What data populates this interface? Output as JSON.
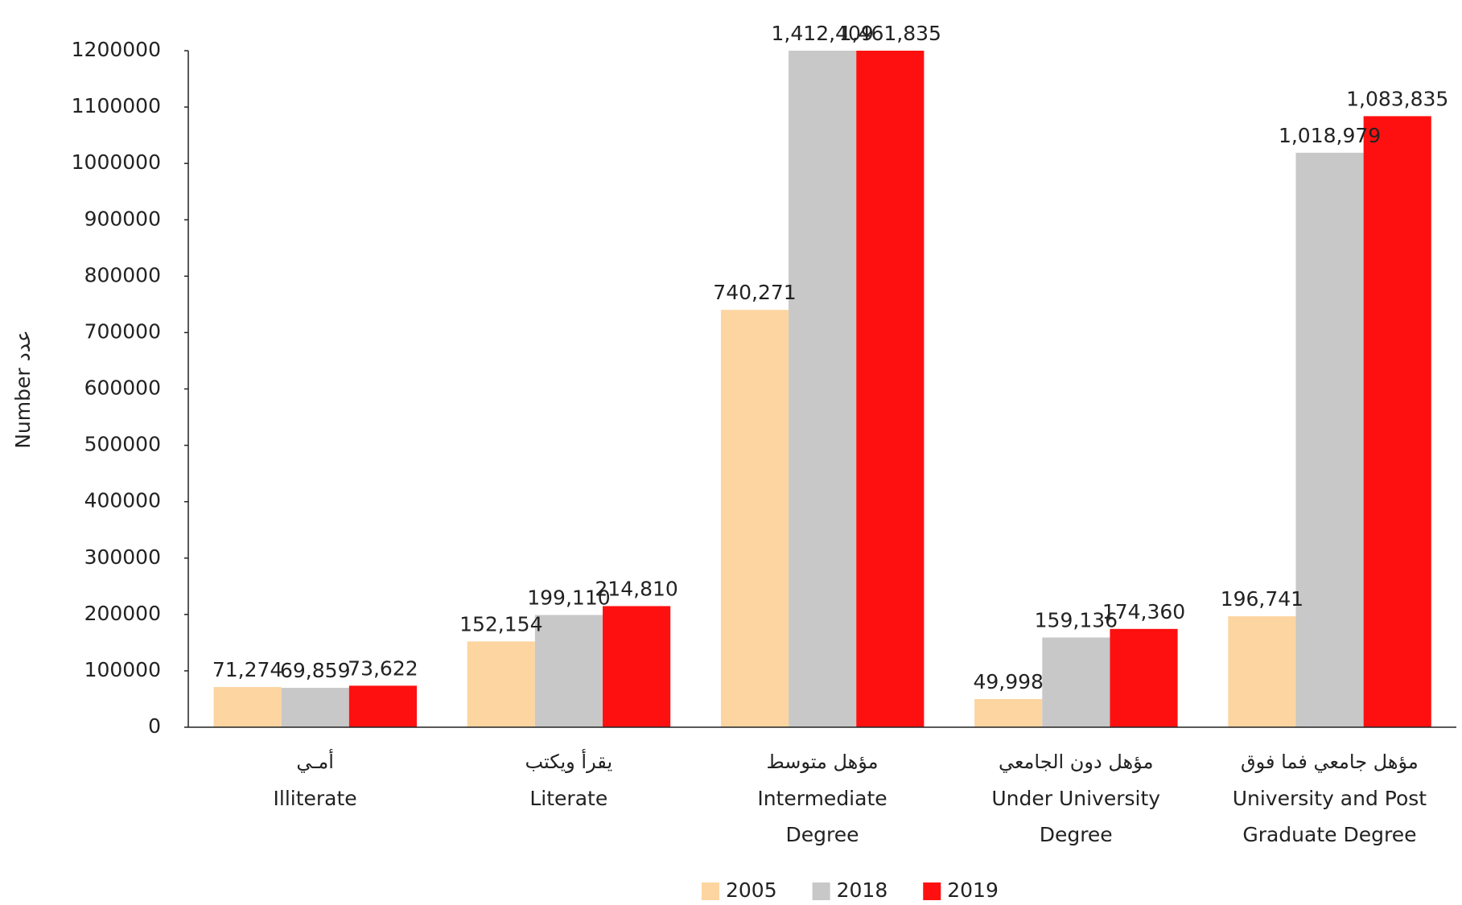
{
  "chart_data": {
    "type": "bar",
    "y_label": "Number  عدد",
    "categories": [
      "Illiterate",
      "Literate",
      "Intermediate Degree",
      "Under University Degree",
      "University and Post Graduate Degree"
    ],
    "categories_ar": [
      "أمـي",
      "يقرأ ويكتب",
      "مؤهل متوسط",
      "مؤهل دون الجامعي",
      "مؤهل جامعي فما فوق"
    ],
    "series": [
      {
        "name": "2005",
        "color": "#fdd5a0",
        "values": [
          71274,
          152154,
          740271,
          49998,
          196741
        ],
        "value_labels": [
          "71,274",
          "152,154",
          "740,271",
          "49,998",
          "196,741"
        ]
      },
      {
        "name": "2018",
        "color": "#c8c8c8",
        "values": [
          69859,
          199110,
          1412409,
          159136,
          1018979
        ],
        "value_labels": [
          "69,859",
          "199,110",
          "1,412,409",
          "159,136",
          "1,018,979"
        ]
      },
      {
        "name": "2019",
        "color": "#ff1010",
        "values": [
          73622,
          214810,
          1461835,
          174360,
          1083835
        ],
        "value_labels": [
          "73,622",
          "214,810",
          "1,461,835",
          "174,360",
          "1,083,835"
        ]
      }
    ],
    "ylim": [
      0,
      1200000
    ],
    "yticks": [
      0,
      100000,
      200000,
      300000,
      400000,
      500000,
      600000,
      700000,
      800000,
      900000,
      1000000,
      1100000,
      1200000
    ],
    "grid": false,
    "legend": "bottom"
  }
}
